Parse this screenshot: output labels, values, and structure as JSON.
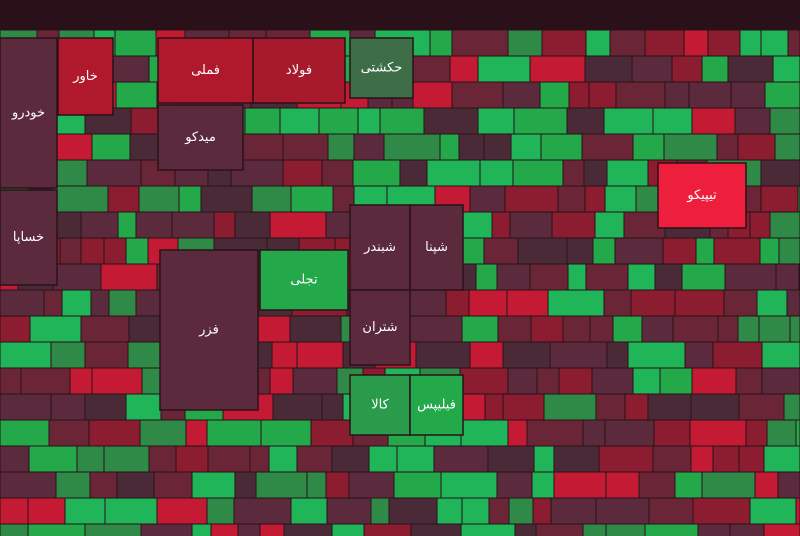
{
  "chart_data": {
    "type": "treemap",
    "tiles": [
      {
        "label": "خودرو",
        "color": "#5b2a3c"
      },
      {
        "label": "خساپا",
        "color": "#5b2a3c"
      },
      {
        "label": "خاور",
        "color": "#b0182c"
      },
      {
        "label": "فملی",
        "color": "#b0182c"
      },
      {
        "label": "فولاد",
        "color": "#a61a2c"
      },
      {
        "label": "میدکو",
        "color": "#5b2a3c"
      },
      {
        "label": "فزر",
        "color": "#5b2a3c"
      },
      {
        "label": "تجلی",
        "color": "#23a84a"
      },
      {
        "label": "شبندر",
        "color": "#5b2a3c"
      },
      {
        "label": "شپنا",
        "color": "#5b2a3c"
      },
      {
        "label": "شتران",
        "color": "#5b2a3c"
      },
      {
        "label": "حکشتی",
        "color": "#3e6e48"
      },
      {
        "label": "تیپیکو",
        "color": "#ee1f3c"
      },
      {
        "label": "کالا",
        "color": "#2a9b4a"
      },
      {
        "label": "فیلیپس",
        "color": "#23a84a"
      }
    ]
  }
}
